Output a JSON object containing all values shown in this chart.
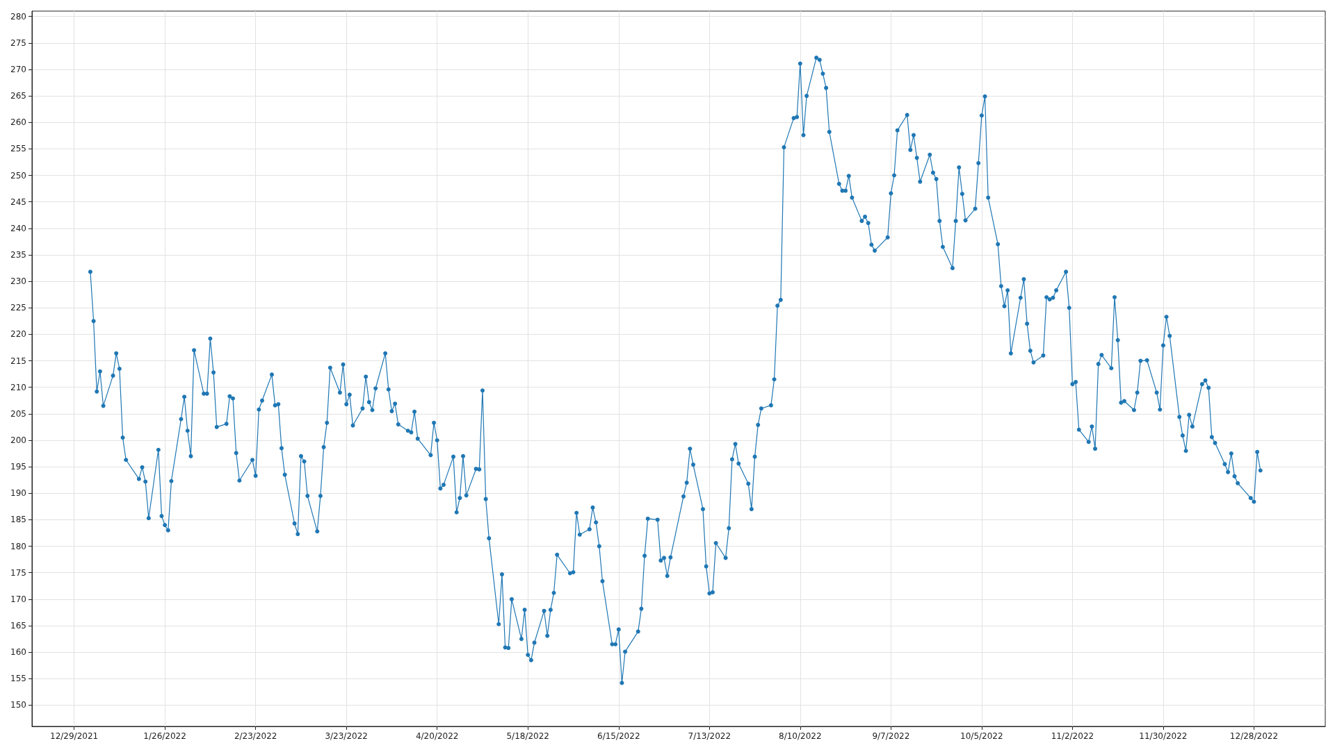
{
  "chart_data": {
    "type": "line",
    "marker": "circle",
    "line_style": "solid",
    "grid": true,
    "xlim": [
      "2021-12-16",
      "2023-01-19"
    ],
    "xticks": [
      {
        "value": "2021-12-29",
        "label": "12/29/2021"
      },
      {
        "value": "2022-01-26",
        "label": "1/26/2022"
      },
      {
        "value": "2022-02-23",
        "label": "2/23/2022"
      },
      {
        "value": "2022-03-23",
        "label": "3/23/2022"
      },
      {
        "value": "2022-04-20",
        "label": "4/20/2022"
      },
      {
        "value": "2022-05-18",
        "label": "5/18/2022"
      },
      {
        "value": "2022-06-15",
        "label": "6/15/2022"
      },
      {
        "value": "2022-07-13",
        "label": "7/13/2022"
      },
      {
        "value": "2022-08-10",
        "label": "8/10/2022"
      },
      {
        "value": "2022-09-07",
        "label": "9/7/2022"
      },
      {
        "value": "2022-10-05",
        "label": "10/5/2022"
      },
      {
        "value": "2022-11-02",
        "label": "11/2/2022"
      },
      {
        "value": "2022-11-30",
        "label": "11/30/2022"
      },
      {
        "value": "2022-12-28",
        "label": "12/28/2022"
      }
    ],
    "ylim": [
      146,
      281
    ],
    "yticks": [
      150,
      155,
      160,
      165,
      170,
      175,
      180,
      185,
      190,
      195,
      200,
      205,
      210,
      215,
      220,
      225,
      230,
      235,
      240,
      245,
      250,
      255,
      260,
      265,
      270,
      275,
      280
    ],
    "x": [
      "2022-01-03",
      "2022-01-04",
      "2022-01-05",
      "2022-01-06",
      "2022-01-07",
      "2022-01-10",
      "2022-01-11",
      "2022-01-12",
      "2022-01-13",
      "2022-01-14",
      "2022-01-18",
      "2022-01-19",
      "2022-01-20",
      "2022-01-21",
      "2022-01-24",
      "2022-01-25",
      "2022-01-26",
      "2022-01-27",
      "2022-01-28",
      "2022-01-31",
      "2022-02-01",
      "2022-02-02",
      "2022-02-03",
      "2022-02-04",
      "2022-02-07",
      "2022-02-08",
      "2022-02-09",
      "2022-02-10",
      "2022-02-11",
      "2022-02-14",
      "2022-02-15",
      "2022-02-16",
      "2022-02-17",
      "2022-02-18",
      "2022-02-22",
      "2022-02-23",
      "2022-02-24",
      "2022-02-25",
      "2022-02-28",
      "2022-03-01",
      "2022-03-02",
      "2022-03-03",
      "2022-03-04",
      "2022-03-07",
      "2022-03-08",
      "2022-03-09",
      "2022-03-10",
      "2022-03-11",
      "2022-03-14",
      "2022-03-15",
      "2022-03-16",
      "2022-03-17",
      "2022-03-18",
      "2022-03-21",
      "2022-03-22",
      "2022-03-23",
      "2022-03-24",
      "2022-03-25",
      "2022-03-28",
      "2022-03-29",
      "2022-03-30",
      "2022-03-31",
      "2022-04-01",
      "2022-04-04",
      "2022-04-05",
      "2022-04-06",
      "2022-04-07",
      "2022-04-08",
      "2022-04-11",
      "2022-04-12",
      "2022-04-13",
      "2022-04-14",
      "2022-04-18",
      "2022-04-19",
      "2022-04-20",
      "2022-04-21",
      "2022-04-22",
      "2022-04-25",
      "2022-04-26",
      "2022-04-27",
      "2022-04-28",
      "2022-04-29",
      "2022-05-02",
      "2022-05-03",
      "2022-05-04",
      "2022-05-05",
      "2022-05-06",
      "2022-05-09",
      "2022-05-10",
      "2022-05-11",
      "2022-05-12",
      "2022-05-13",
      "2022-05-16",
      "2022-05-17",
      "2022-05-18",
      "2022-05-19",
      "2022-05-20",
      "2022-05-23",
      "2022-05-24",
      "2022-05-25",
      "2022-05-26",
      "2022-05-27",
      "2022-05-31",
      "2022-06-01",
      "2022-06-02",
      "2022-06-03",
      "2022-06-06",
      "2022-06-07",
      "2022-06-08",
      "2022-06-09",
      "2022-06-10",
      "2022-06-13",
      "2022-06-14",
      "2022-06-15",
      "2022-06-16",
      "2022-06-17",
      "2022-06-21",
      "2022-06-22",
      "2022-06-23",
      "2022-06-24",
      "2022-06-27",
      "2022-06-28",
      "2022-06-29",
      "2022-06-30",
      "2022-07-01",
      "2022-07-05",
      "2022-07-06",
      "2022-07-07",
      "2022-07-08",
      "2022-07-11",
      "2022-07-12",
      "2022-07-13",
      "2022-07-14",
      "2022-07-15",
      "2022-07-18",
      "2022-07-19",
      "2022-07-20",
      "2022-07-21",
      "2022-07-22",
      "2022-07-25",
      "2022-07-26",
      "2022-07-27",
      "2022-07-28",
      "2022-07-29",
      "2022-08-01",
      "2022-08-02",
      "2022-08-03",
      "2022-08-04",
      "2022-08-05",
      "2022-08-08",
      "2022-08-09",
      "2022-08-10",
      "2022-08-11",
      "2022-08-12",
      "2022-08-15",
      "2022-08-16",
      "2022-08-17",
      "2022-08-18",
      "2022-08-19",
      "2022-08-22",
      "2022-08-23",
      "2022-08-24",
      "2022-08-25",
      "2022-08-26",
      "2022-08-29",
      "2022-08-30",
      "2022-08-31",
      "2022-09-01",
      "2022-09-02",
      "2022-09-06",
      "2022-09-07",
      "2022-09-08",
      "2022-09-09",
      "2022-09-12",
      "2022-09-13",
      "2022-09-14",
      "2022-09-15",
      "2022-09-16",
      "2022-09-19",
      "2022-09-20",
      "2022-09-21",
      "2022-09-22",
      "2022-09-23",
      "2022-09-26",
      "2022-09-27",
      "2022-09-28",
      "2022-09-29",
      "2022-09-30",
      "2022-10-03",
      "2022-10-04",
      "2022-10-05",
      "2022-10-06",
      "2022-10-07",
      "2022-10-10",
      "2022-10-11",
      "2022-10-12",
      "2022-10-13",
      "2022-10-14",
      "2022-10-17",
      "2022-10-18",
      "2022-10-19",
      "2022-10-20",
      "2022-10-21",
      "2022-10-24",
      "2022-10-25",
      "2022-10-26",
      "2022-10-27",
      "2022-10-28",
      "2022-10-31",
      "2022-11-01",
      "2022-11-02",
      "2022-11-03",
      "2022-11-04",
      "2022-11-07",
      "2022-11-08",
      "2022-11-09",
      "2022-11-10",
      "2022-11-11",
      "2022-11-14",
      "2022-11-15",
      "2022-11-16",
      "2022-11-17",
      "2022-11-18",
      "2022-11-21",
      "2022-11-22",
      "2022-11-23",
      "2022-11-25",
      "2022-11-28",
      "2022-11-29",
      "2022-11-30",
      "2022-12-01",
      "2022-12-02",
      "2022-12-05",
      "2022-12-06",
      "2022-12-07",
      "2022-12-08",
      "2022-12-09",
      "2022-12-12",
      "2022-12-13",
      "2022-12-14",
      "2022-12-15",
      "2022-12-16",
      "2022-12-19",
      "2022-12-20",
      "2022-12-21",
      "2022-12-22",
      "2022-12-23",
      "2022-12-27",
      "2022-12-28",
      "2022-12-29",
      "2022-12-30"
    ],
    "series": [
      {
        "color": "#1f77b4",
        "values": [
          231.8,
          222.5,
          209.2,
          213,
          206.5,
          212.2,
          216.4,
          213.5,
          200.5,
          196.3,
          192.7,
          194.9,
          192.2,
          185.3,
          198.2,
          185.7,
          184,
          183,
          192.3,
          204,
          208.2,
          201.8,
          197,
          217,
          208.8,
          208.8,
          219.2,
          212.8,
          202.5,
          203.1,
          208.3,
          207.9,
          197.6,
          192.4,
          196.3,
          193.3,
          205.8,
          207.5,
          212.4,
          206.6,
          206.8,
          198.5,
          193.5,
          184.3,
          182.3,
          197,
          196,
          189.5,
          182.8,
          189.5,
          198.7,
          203.3,
          213.7,
          209,
          214.3,
          206.8,
          208.6,
          202.8,
          206,
          212,
          207.2,
          205.7,
          209.8,
          216.4,
          209.6,
          205.5,
          206.9,
          203,
          201.8,
          201.5,
          205.4,
          200.3,
          197.2,
          203.3,
          200,
          190.9,
          191.6,
          196.9,
          186.4,
          189.1,
          197,
          189.6,
          194.6,
          194.5,
          209.4,
          188.9,
          181.5,
          165.3,
          174.7,
          160.9,
          160.8,
          170,
          162.5,
          168,
          159.5,
          158.5,
          161.8,
          167.8,
          163.1,
          168,
          171.2,
          178.4,
          174.9,
          175.1,
          186.3,
          182.2,
          183.2,
          187.3,
          184.5,
          180,
          173.4,
          161.5,
          161.5,
          164.3,
          154.2,
          160.1,
          163.9,
          168.2,
          178.2,
          185.2,
          185,
          177.3,
          177.8,
          174.4,
          177.9,
          189.4,
          192,
          198.4,
          195.4,
          187,
          176.2,
          171.1,
          171.3,
          180.6,
          177.8,
          183.4,
          196.4,
          199.3,
          195.6,
          191.8,
          187,
          196.9,
          202.9,
          206,
          206.6,
          211.5,
          225.4,
          226.5,
          255.3,
          260.8,
          261,
          271.1,
          257.6,
          265,
          272.2,
          271.8,
          269.2,
          266.5,
          258.2,
          248.4,
          247.1,
          247.1,
          249.9,
          245.8,
          241.4,
          242.2,
          241,
          236.9,
          235.8,
          238.3,
          246.6,
          250,
          258.5,
          261.4,
          254.8,
          257.6,
          253.3,
          248.8,
          253.9,
          250.5,
          249.3,
          241.4,
          236.5,
          232.5,
          241.4,
          251.5,
          246.5,
          241.5,
          243.7,
          252.3,
          261.3,
          264.9,
          245.8,
          237,
          229.1,
          225.3,
          228.3,
          216.4,
          226.9,
          230.4,
          222,
          216.9,
          214.7,
          216,
          227,
          226.6,
          226.9,
          228.3,
          231.8,
          225,
          210.6,
          211,
          202,
          199.7,
          202.6,
          198.4,
          214.4,
          216.1,
          213.6,
          227,
          218.9,
          207.1,
          207.4,
          205.7,
          209,
          215,
          215.1,
          209,
          205.8,
          217.9,
          223.3,
          219.7,
          204.4,
          200.9,
          198,
          204.8,
          202.6,
          210.6,
          211.3,
          209.9,
          200.6,
          199.5,
          195.5,
          194,
          197.5,
          193.2,
          191.9,
          189.1,
          188.4,
          197.8,
          194.3
        ]
      }
    ]
  }
}
